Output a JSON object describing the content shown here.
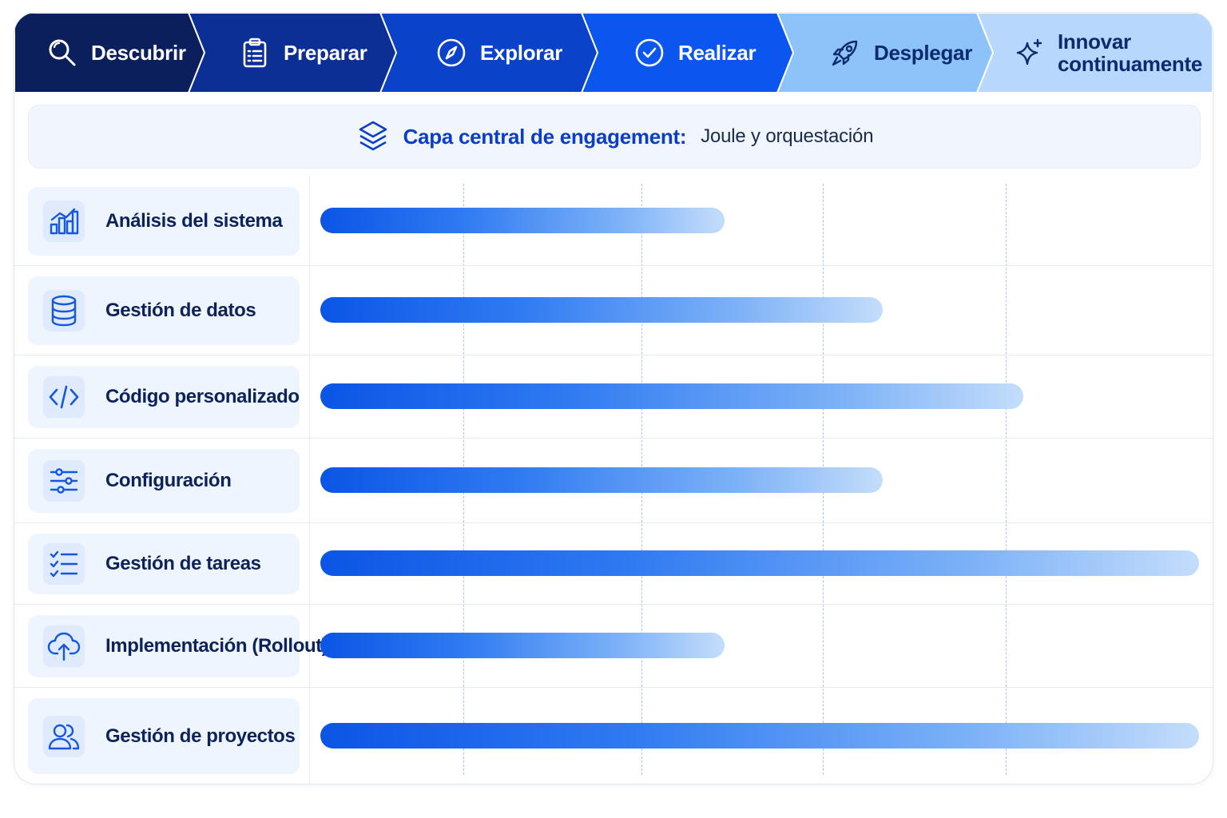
{
  "phases": [
    {
      "label": "Descubrir",
      "icon": "search-icon",
      "bg": "#0a1f5c",
      "fg": "#ffffff"
    },
    {
      "label": "Preparar",
      "icon": "clipboard-icon",
      "bg": "#0b2f94",
      "fg": "#ffffff"
    },
    {
      "label": "Explorar",
      "icon": "compass-icon",
      "bg": "#0a42c9",
      "fg": "#ffffff"
    },
    {
      "label": "Realizar",
      "icon": "check-circle-icon",
      "bg": "#0a56ef",
      "fg": "#ffffff"
    },
    {
      "label": "Desplegar",
      "icon": "rocket-icon",
      "bg": "#8ec3fa",
      "fg": "#0c2a6e"
    },
    {
      "label": "Innovar continuamente",
      "icon": "sparkle-icon",
      "bg": "#b7d8fc",
      "fg": "#0c2a6e"
    }
  ],
  "banner": {
    "title": "Capa central de engagement:",
    "subtitle": "Joule y orquestación",
    "icon": "layers-icon"
  },
  "rows": [
    {
      "label": "Análisis del sistema",
      "icon": "bar-chart-icon",
      "start_phase": 0,
      "end_phase": 2.3
    },
    {
      "label": "Gestión de datos",
      "icon": "database-icon",
      "start_phase": 0,
      "end_phase": 3.2
    },
    {
      "label": "Código personalizado",
      "icon": "code-icon",
      "start_phase": 0,
      "end_phase": 4.0
    },
    {
      "label": "Configuración",
      "icon": "sliders-icon",
      "start_phase": 0,
      "end_phase": 3.2
    },
    {
      "label": "Gestión de tareas",
      "icon": "checklist-icon",
      "start_phase": 0,
      "end_phase": 5.0
    },
    {
      "label": "Implementación (Rollout)",
      "icon": "cloud-upload-icon",
      "start_phase": 0,
      "end_phase": 2.3
    },
    {
      "label": "Gestión de proyectos",
      "icon": "users-icon",
      "start_phase": 0,
      "end_phase": 5.0
    }
  ],
  "colors": {
    "accent": "#0b55e6",
    "label_text": "#0d2259",
    "banner_title": "#0b3ec4"
  }
}
